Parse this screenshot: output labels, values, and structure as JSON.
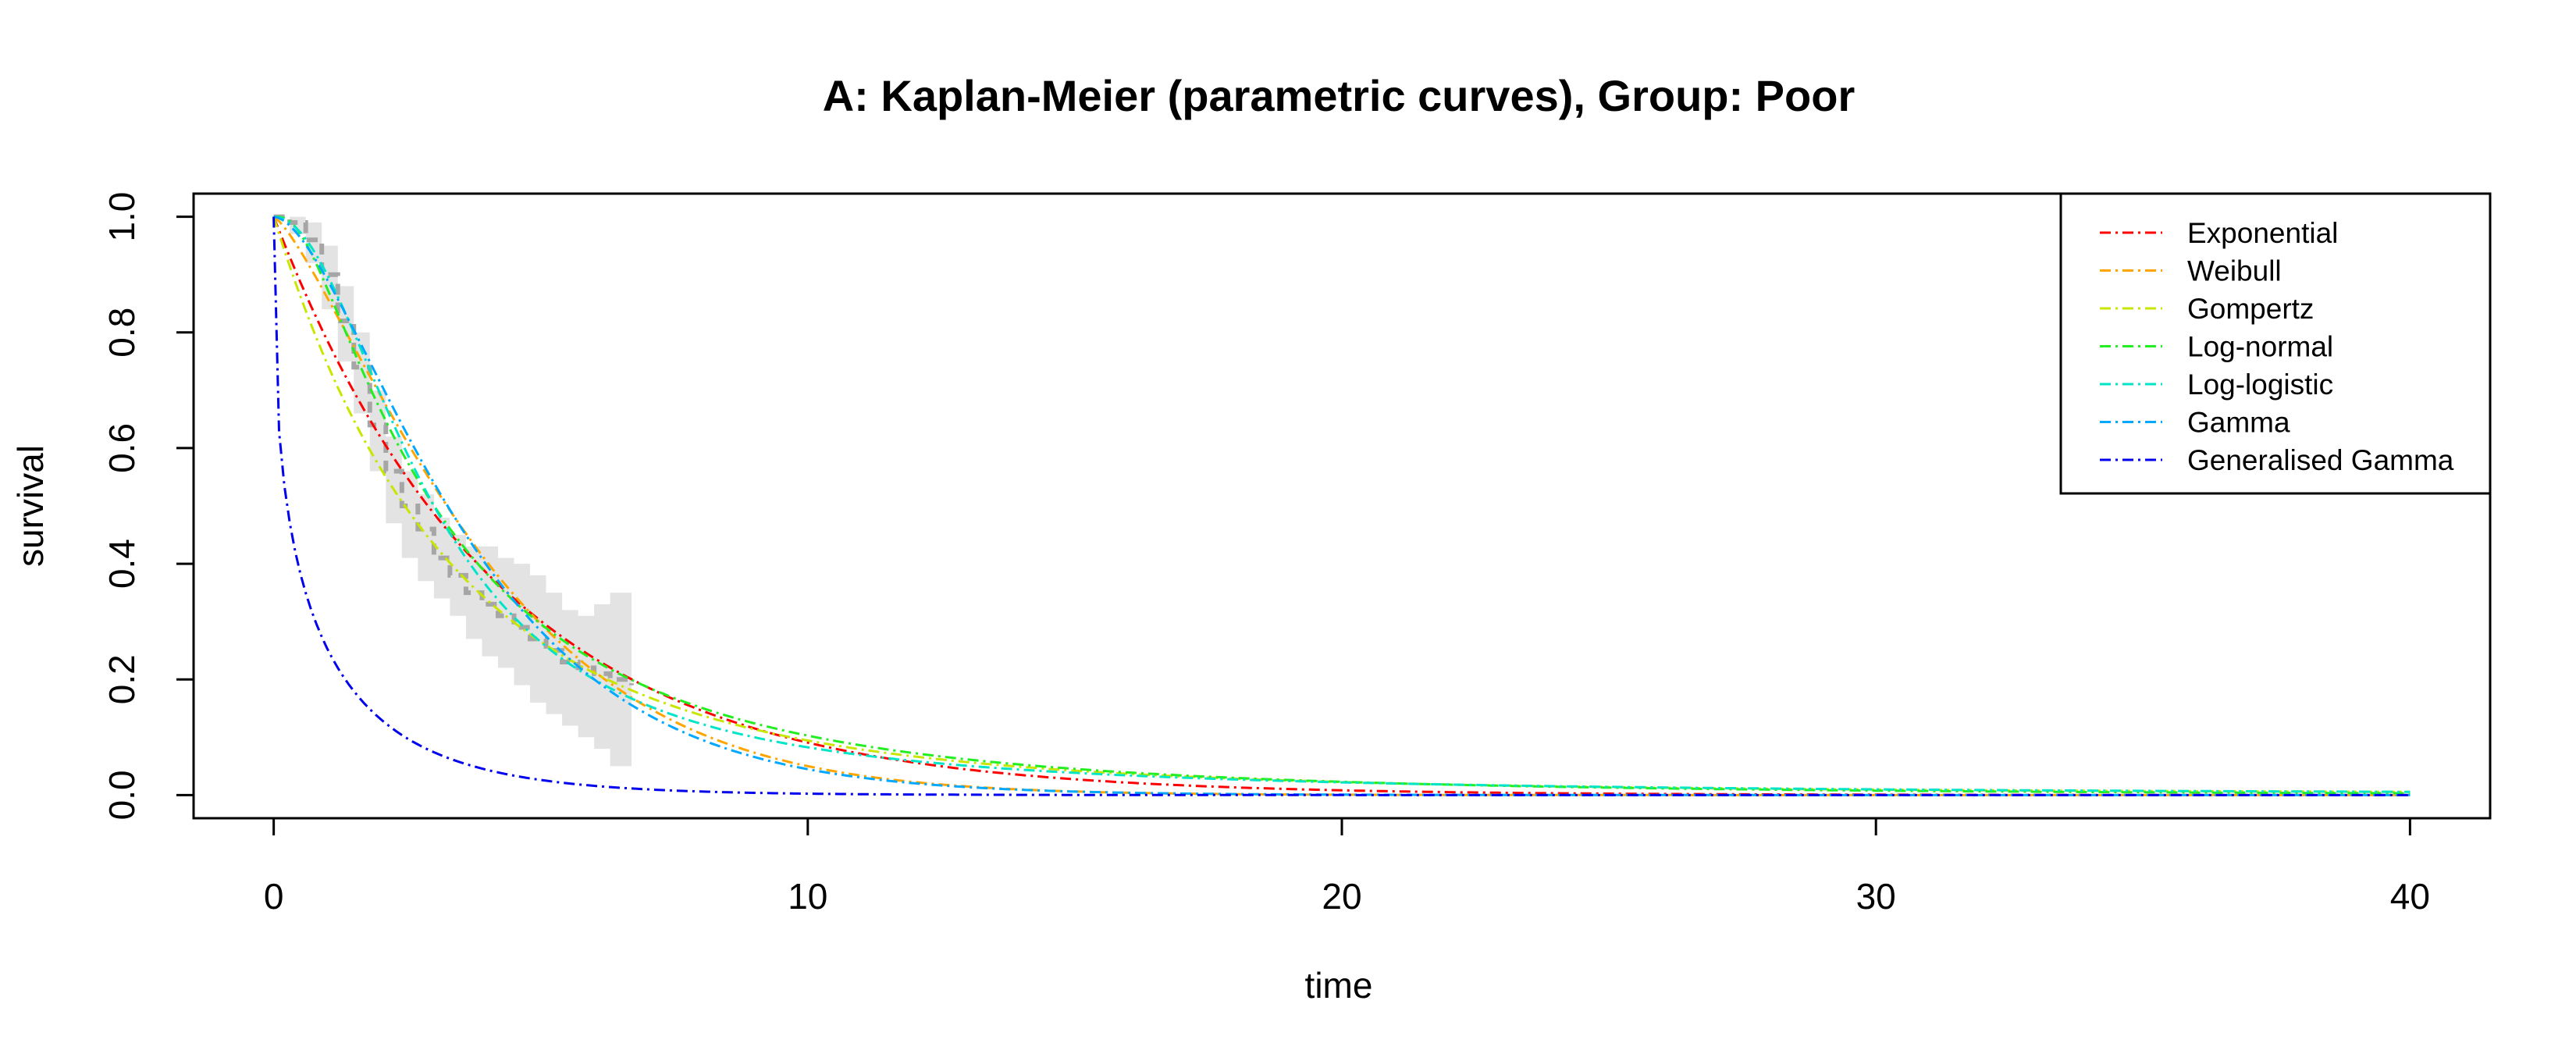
{
  "chart_data": {
    "type": "line",
    "title": "A: Kaplan-Meier (parametric curves), Group: Poor",
    "xlabel": "time",
    "ylabel": "survival",
    "xlim": [
      -1.5,
      41.5
    ],
    "ylim": [
      -0.04,
      1.04
    ],
    "x_ticks": [
      0,
      10,
      20,
      30,
      40
    ],
    "y_ticks": [
      0.0,
      0.2,
      0.4,
      0.6,
      0.8,
      1.0
    ],
    "x_tick_labels": [
      "0",
      "10",
      "20",
      "30",
      "40"
    ],
    "y_tick_labels": [
      "0.0",
      "0.2",
      "0.4",
      "0.6",
      "0.8",
      "1.0"
    ],
    "legend_position": "top-right",
    "grid": false,
    "km": {
      "color": "#a6a6a6",
      "ci_color": "#e3e3e3",
      "steps": [
        [
          0,
          1.0
        ],
        [
          0.3,
          0.99
        ],
        [
          0.6,
          0.96
        ],
        [
          0.9,
          0.9
        ],
        [
          1.2,
          0.82
        ],
        [
          1.5,
          0.74
        ],
        [
          1.8,
          0.64
        ],
        [
          2.1,
          0.56
        ],
        [
          2.4,
          0.5
        ],
        [
          2.7,
          0.46
        ],
        [
          3.0,
          0.41
        ],
        [
          3.3,
          0.38
        ],
        [
          3.6,
          0.35
        ],
        [
          3.9,
          0.33
        ],
        [
          4.2,
          0.31
        ],
        [
          4.5,
          0.29
        ],
        [
          4.8,
          0.27
        ],
        [
          5.1,
          0.25
        ],
        [
          5.4,
          0.23
        ],
        [
          5.7,
          0.22
        ],
        [
          6.0,
          0.21
        ],
        [
          6.3,
          0.2
        ],
        [
          6.7,
          0.19
        ]
      ],
      "ci_upper": [
        [
          0,
          1.0
        ],
        [
          0.3,
          1.0
        ],
        [
          0.6,
          0.99
        ],
        [
          0.9,
          0.95
        ],
        [
          1.2,
          0.88
        ],
        [
          1.5,
          0.8
        ],
        [
          1.8,
          0.7
        ],
        [
          2.1,
          0.62
        ],
        [
          2.4,
          0.56
        ],
        [
          2.7,
          0.52
        ],
        [
          3.0,
          0.48
        ],
        [
          3.3,
          0.45
        ],
        [
          3.6,
          0.43
        ],
        [
          3.9,
          0.43
        ],
        [
          4.2,
          0.41
        ],
        [
          4.5,
          0.4
        ],
        [
          4.8,
          0.38
        ],
        [
          5.1,
          0.35
        ],
        [
          5.4,
          0.32
        ],
        [
          5.7,
          0.31
        ],
        [
          6.0,
          0.33
        ],
        [
          6.3,
          0.35
        ],
        [
          6.7,
          0.37
        ]
      ],
      "ci_lower": [
        [
          0,
          1.0
        ],
        [
          0.3,
          0.97
        ],
        [
          0.6,
          0.92
        ],
        [
          0.9,
          0.84
        ],
        [
          1.2,
          0.75
        ],
        [
          1.5,
          0.66
        ],
        [
          1.8,
          0.56
        ],
        [
          2.1,
          0.47
        ],
        [
          2.4,
          0.41
        ],
        [
          2.7,
          0.37
        ],
        [
          3.0,
          0.34
        ],
        [
          3.3,
          0.31
        ],
        [
          3.6,
          0.27
        ],
        [
          3.9,
          0.24
        ],
        [
          4.2,
          0.22
        ],
        [
          4.5,
          0.19
        ],
        [
          4.8,
          0.16
        ],
        [
          5.1,
          0.14
        ],
        [
          5.4,
          0.12
        ],
        [
          5.7,
          0.1
        ],
        [
          6.0,
          0.08
        ],
        [
          6.3,
          0.05
        ],
        [
          6.7,
          0.02
        ]
      ]
    },
    "series": [
      {
        "name": "Exponential",
        "color": "#ff0000",
        "dist": "exp",
        "params": [
          0.24
        ]
      },
      {
        "name": "Weibull",
        "color": "#ffa500",
        "dist": "weibull",
        "params": [
          1.3,
          4.3
        ]
      },
      {
        "name": "Gompertz",
        "color": "#c8e600",
        "dist": "gompertz",
        "params": [
          -0.05,
          0.3
        ]
      },
      {
        "name": "Log-normal",
        "color": "#22ee22",
        "dist": "lnorm",
        "params": [
          1.1,
          0.95
        ]
      },
      {
        "name": "Log-logistic",
        "color": "#00e5c8",
        "dist": "llogis",
        "params": [
          3.0,
          2.0
        ]
      },
      {
        "name": "Gamma",
        "color": "#00a8ff",
        "dist": "gamma",
        "params": [
          1.8,
          2.2
        ]
      },
      {
        "name": "Generalised Gamma",
        "color": "#0000ee",
        "dist": "gengamma",
        "params": [
          2.5,
          0.34
        ]
      }
    ]
  }
}
